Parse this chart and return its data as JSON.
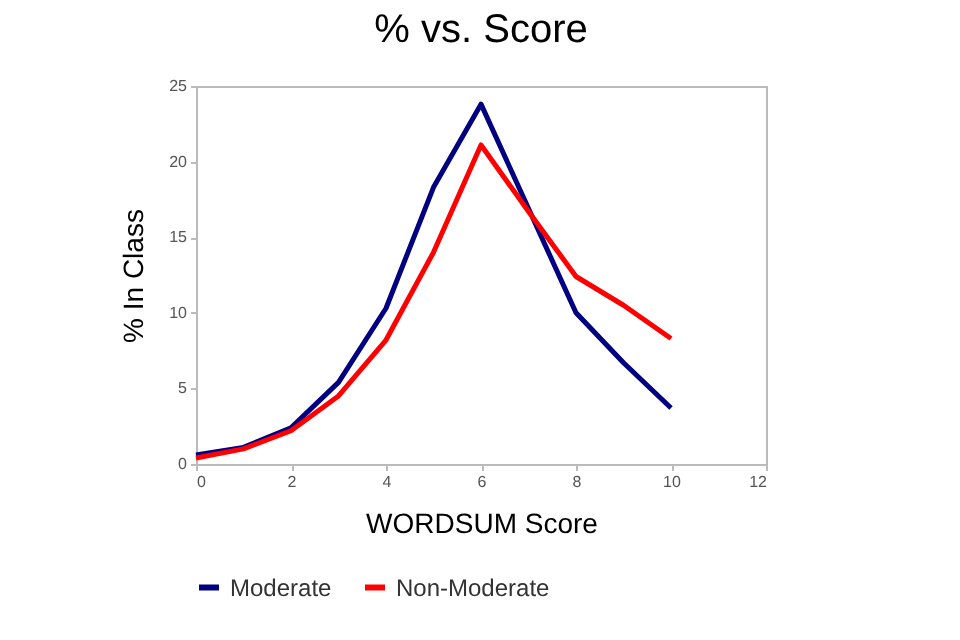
{
  "chart_data": {
    "type": "line",
    "title": "% vs. Score",
    "xlabel": "WORDSUM Score",
    "ylabel": "% In Class",
    "x": [
      0,
      1,
      2,
      3,
      4,
      5,
      6,
      7,
      8,
      9,
      10
    ],
    "series": [
      {
        "name": "Moderate",
        "color": "#000080",
        "values": [
          0.6,
          1.1,
          2.4,
          5.4,
          10.3,
          18.3,
          23.8,
          16.9,
          10.0,
          6.7,
          3.7
        ]
      },
      {
        "name": "Non-Moderate",
        "color": "#ff0000",
        "values": [
          0.4,
          1.0,
          2.2,
          4.5,
          8.2,
          14.0,
          21.1,
          16.7,
          12.4,
          10.5,
          8.3
        ]
      }
    ],
    "xlim": [
      0,
      12
    ],
    "xticks": [
      0,
      2,
      4,
      6,
      8,
      10,
      12
    ],
    "ylim": [
      0,
      25
    ],
    "yticks": [
      0,
      5,
      10,
      15,
      20,
      25
    ],
    "grid": false,
    "legend": "bottom",
    "marker": "none",
    "line_style": "solid"
  }
}
